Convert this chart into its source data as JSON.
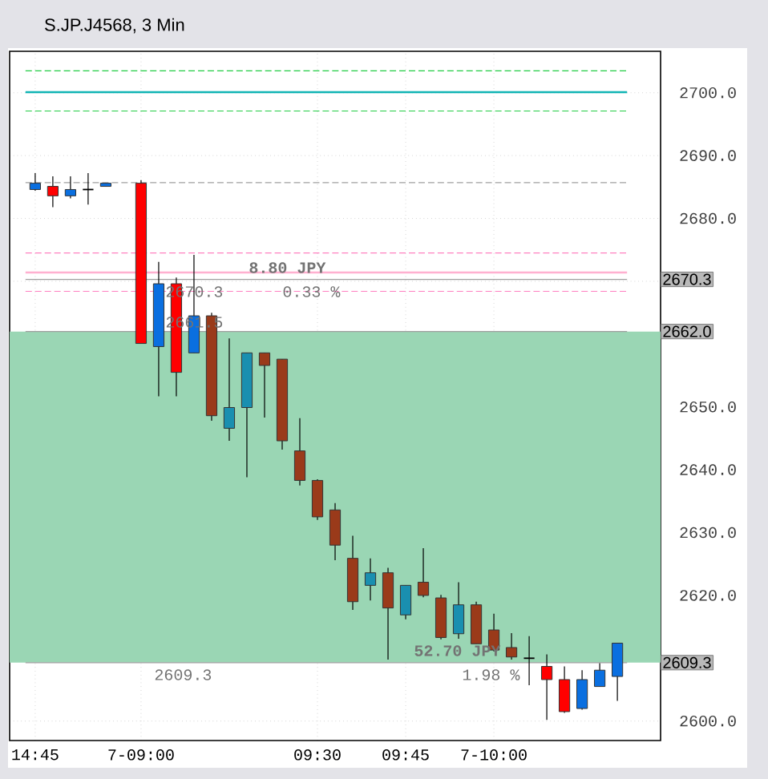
{
  "chart_data": {
    "type": "candlestick",
    "title": "S.JP.J4568, 3 Min",
    "categories": [
      "14:45",
      null,
      null,
      null,
      null,
      null,
      "7-09:00",
      null,
      null,
      null,
      null,
      null,
      null,
      null,
      null,
      null,
      "09:30",
      null,
      null,
      null,
      null,
      "09:45",
      null,
      null,
      null,
      null,
      "7-10:00",
      null,
      null,
      null,
      null,
      null,
      null,
      null
    ],
    "ohlc": [
      [
        2684.6,
        2687.2,
        2684.4,
        2685.6
      ],
      [
        2685.1,
        2686.7,
        2681.8,
        2683.6
      ],
      [
        2683.6,
        2686.7,
        2683.2,
        2684.6
      ],
      [
        2684.6,
        2687.2,
        2682.2,
        2684.6
      ],
      [
        2685.1,
        2685.6,
        2685.1,
        2685.6
      ],
      null,
      [
        2685.6,
        2686.1,
        2660.1,
        2660.1
      ],
      [
        2659.6,
        2673.1,
        2651.7,
        2669.6
      ],
      [
        2669.6,
        2670.6,
        2651.7,
        2655.5
      ],
      [
        2658.6,
        2674.2,
        2658.6,
        2664.5
      ],
      [
        2664.5,
        2665.0,
        2647.8,
        2648.6
      ],
      [
        2646.6,
        2660.9,
        2644.6,
        2649.9
      ],
      [
        2649.9,
        2658.6,
        2638.8,
        2658.6
      ],
      [
        2658.6,
        2658.6,
        2648.3,
        2656.6
      ],
      [
        2657.6,
        2657.6,
        2643.2,
        2644.6
      ],
      [
        2643.0,
        2648.2,
        2637.5,
        2638.3
      ],
      [
        2638.3,
        2638.5,
        2632.0,
        2632.5
      ],
      [
        2633.6,
        2634.7,
        2625.6,
        2628.0
      ],
      [
        2625.9,
        2629.5,
        2617.7,
        2619.0
      ],
      [
        2621.6,
        2625.9,
        2619.2,
        2623.6
      ],
      [
        2623.6,
        2624.4,
        2609.8,
        2618.0
      ],
      [
        2616.9,
        2621.6,
        2616.2,
        2621.6
      ],
      [
        2622.1,
        2627.5,
        2619.7,
        2620.0
      ],
      [
        2619.6,
        2620.1,
        2613.0,
        2613.3
      ],
      [
        2613.9,
        2622.1,
        2613.1,
        2618.5
      ],
      [
        2618.5,
        2619.0,
        2612.3,
        2612.3
      ],
      [
        2614.5,
        2617.1,
        2611.1,
        2611.3
      ],
      [
        2611.7,
        2614.0,
        2609.8,
        2610.2
      ],
      [
        2610.0,
        2613.5,
        2605.7,
        2610.0
      ],
      [
        2608.7,
        2610.6,
        2600.2,
        2606.6
      ],
      [
        2606.6,
        2608.7,
        2601.3,
        2601.5
      ],
      [
        2602.0,
        2608.1,
        2601.8,
        2606.6
      ],
      [
        2605.5,
        2609.2,
        2605.5,
        2608.1
      ],
      [
        2607.1,
        2612.4,
        2603.2,
        2612.4
      ]
    ],
    "colors": [
      "#0a6fe0",
      "#ff0000",
      "#0a6fe0",
      "#000000",
      "#0a6fe0",
      null,
      "#ff0000",
      "#0a6fe0",
      "#ff0000",
      "#0a6fe0",
      "#9a3a1a",
      "#1a8fb0",
      "#1a8fb0",
      "#9a3a1a",
      "#9a3a1a",
      "#9a3a1a",
      "#9a3a1a",
      "#9a3a1a",
      "#9a3a1a",
      "#1a8fb0",
      "#9a3a1a",
      "#1a8fb0",
      "#9a3a1a",
      "#9a3a1a",
      "#1a8fb0",
      "#9a3a1a",
      "#9a3a1a",
      "#9a3a1a",
      "#000000",
      "#ff0000",
      "#ff0000",
      "#0a6fe0",
      "#0a6fe0",
      "#0a6fe0"
    ],
    "ylim": [
      2596.9,
      2706.6
    ],
    "yticks": [
      {
        "value": 2600,
        "label": "2600.0"
      },
      {
        "value": 2610,
        "label": null
      },
      {
        "value": 2620,
        "label": "2620.0"
      },
      {
        "value": 2630,
        "label": "2630.0"
      },
      {
        "value": 2640,
        "label": "2640.0"
      },
      {
        "value": 2650,
        "label": "2650.0"
      },
      {
        "value": 2660,
        "label": null
      },
      {
        "value": 2670,
        "label": null
      },
      {
        "value": 2680,
        "label": "2680.0"
      },
      {
        "value": 2690,
        "label": "2690.0"
      },
      {
        "value": 2700,
        "label": "2700.0"
      }
    ],
    "grid": true,
    "bands": [
      {
        "axis": "y",
        "from": 2609.3,
        "to": 2662.0,
        "color": "#9ad6b4"
      }
    ],
    "ref_lines": [
      {
        "axis": "y",
        "value": 2703.5,
        "color": "#22cc44",
        "line_style": "dashed"
      },
      {
        "axis": "y",
        "value": 2700.1,
        "color": "#11b5b5",
        "line_style": "solid"
      },
      {
        "axis": "y",
        "value": 2697.1,
        "color": "#22cc44",
        "line_style": "dashed"
      },
      {
        "axis": "y",
        "value": 2685.7,
        "color": "#a0a0a0",
        "line_style": "dashed"
      },
      {
        "axis": "y",
        "value": 2674.5,
        "color": "#ff80c0",
        "line_style": "dashed"
      },
      {
        "axis": "y",
        "value": 2671.4,
        "color": "#ffb0d0",
        "line_style": "solid"
      },
      {
        "axis": "y",
        "value": 2668.4,
        "color": "#ff80c0",
        "line_style": "dashed"
      },
      {
        "axis": "y",
        "value": 2670.3,
        "label": "2670.3",
        "color": "#a0a0a0",
        "line_style": "solid"
      },
      {
        "axis": "y",
        "value": 2662.0,
        "label": "2662.0",
        "color": "#a0a0a0",
        "line_style": "solid"
      },
      {
        "axis": "y",
        "value": 2609.3,
        "label": "2609.3",
        "color": "#a0a0a0",
        "line_style": "solid"
      }
    ],
    "annotations": [
      "8.80 JPY",
      "2670.3",
      "0.33 %",
      "2661.5",
      "2609.3",
      "52.70 JPY",
      "1.98 %"
    ]
  }
}
